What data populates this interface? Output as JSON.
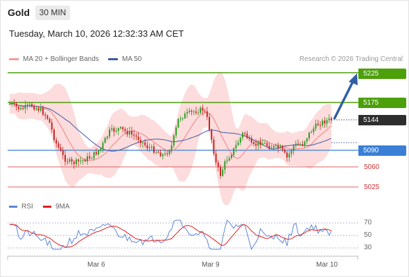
{
  "header": {
    "instrument": "Gold",
    "timeframe": "30 MIN",
    "datetime": "Tuesday, March 10, 2026 12:32:33 AM CET"
  },
  "legend": {
    "bollinger_label": "MA 20 + Bollinger Bands",
    "ma50_label": "MA 50",
    "credit": "Research © 2026 Trading Central"
  },
  "rsi_legend": {
    "rsi_label": "RSI",
    "ma_label": "9MA"
  },
  "colors": {
    "target": "#4ca00a",
    "current": "#2e2e2e",
    "pivot": "#3a7fd5",
    "support": "#d23030",
    "bollinger": "#f59a9a",
    "ma50": "#3f5aa8",
    "rsi": "#5b86d8",
    "rsi_ma": "#e02020",
    "arrow": "#2f5fa5"
  },
  "levels": {
    "target2": "5225",
    "target1": "5175",
    "current": "5144",
    "pivot": "5090",
    "support1": "5060",
    "support2": "5025"
  },
  "rsi_levels": {
    "high": "70",
    "mid": "50",
    "low": "30"
  },
  "x_labels": {
    "d1": "Mar 6",
    "d2": "Mar 9",
    "d3": "Mar 10"
  },
  "chart_data": [
    {
      "type": "candlestick",
      "title": "Gold",
      "timeframe": "30 MIN",
      "horizontal_levels": [
        {
          "label": "5225",
          "value": 5225,
          "role": "target"
        },
        {
          "label": "5175",
          "value": 5175,
          "role": "target"
        },
        {
          "label": "5144",
          "value": 5144,
          "role": "current price"
        },
        {
          "label": "5090",
          "value": 5090,
          "role": "pivot"
        },
        {
          "label": "5060",
          "value": 5060,
          "role": "support"
        },
        {
          "label": "5025",
          "value": 5025,
          "role": "support"
        }
      ],
      "x_ticks": [
        "Mar 6",
        "Mar 9",
        "Mar 10"
      ],
      "series": [
        {
          "name": "MA 20 + Bollinger Bands"
        },
        {
          "name": "MA 50"
        }
      ],
      "ylim": [
        5000,
        5240
      ]
    },
    {
      "type": "line",
      "y_ticks": [
        30,
        50,
        70
      ],
      "series": [
        {
          "name": "RSI"
        },
        {
          "name": "9MA"
        }
      ],
      "ylim": [
        20,
        80
      ]
    }
  ]
}
